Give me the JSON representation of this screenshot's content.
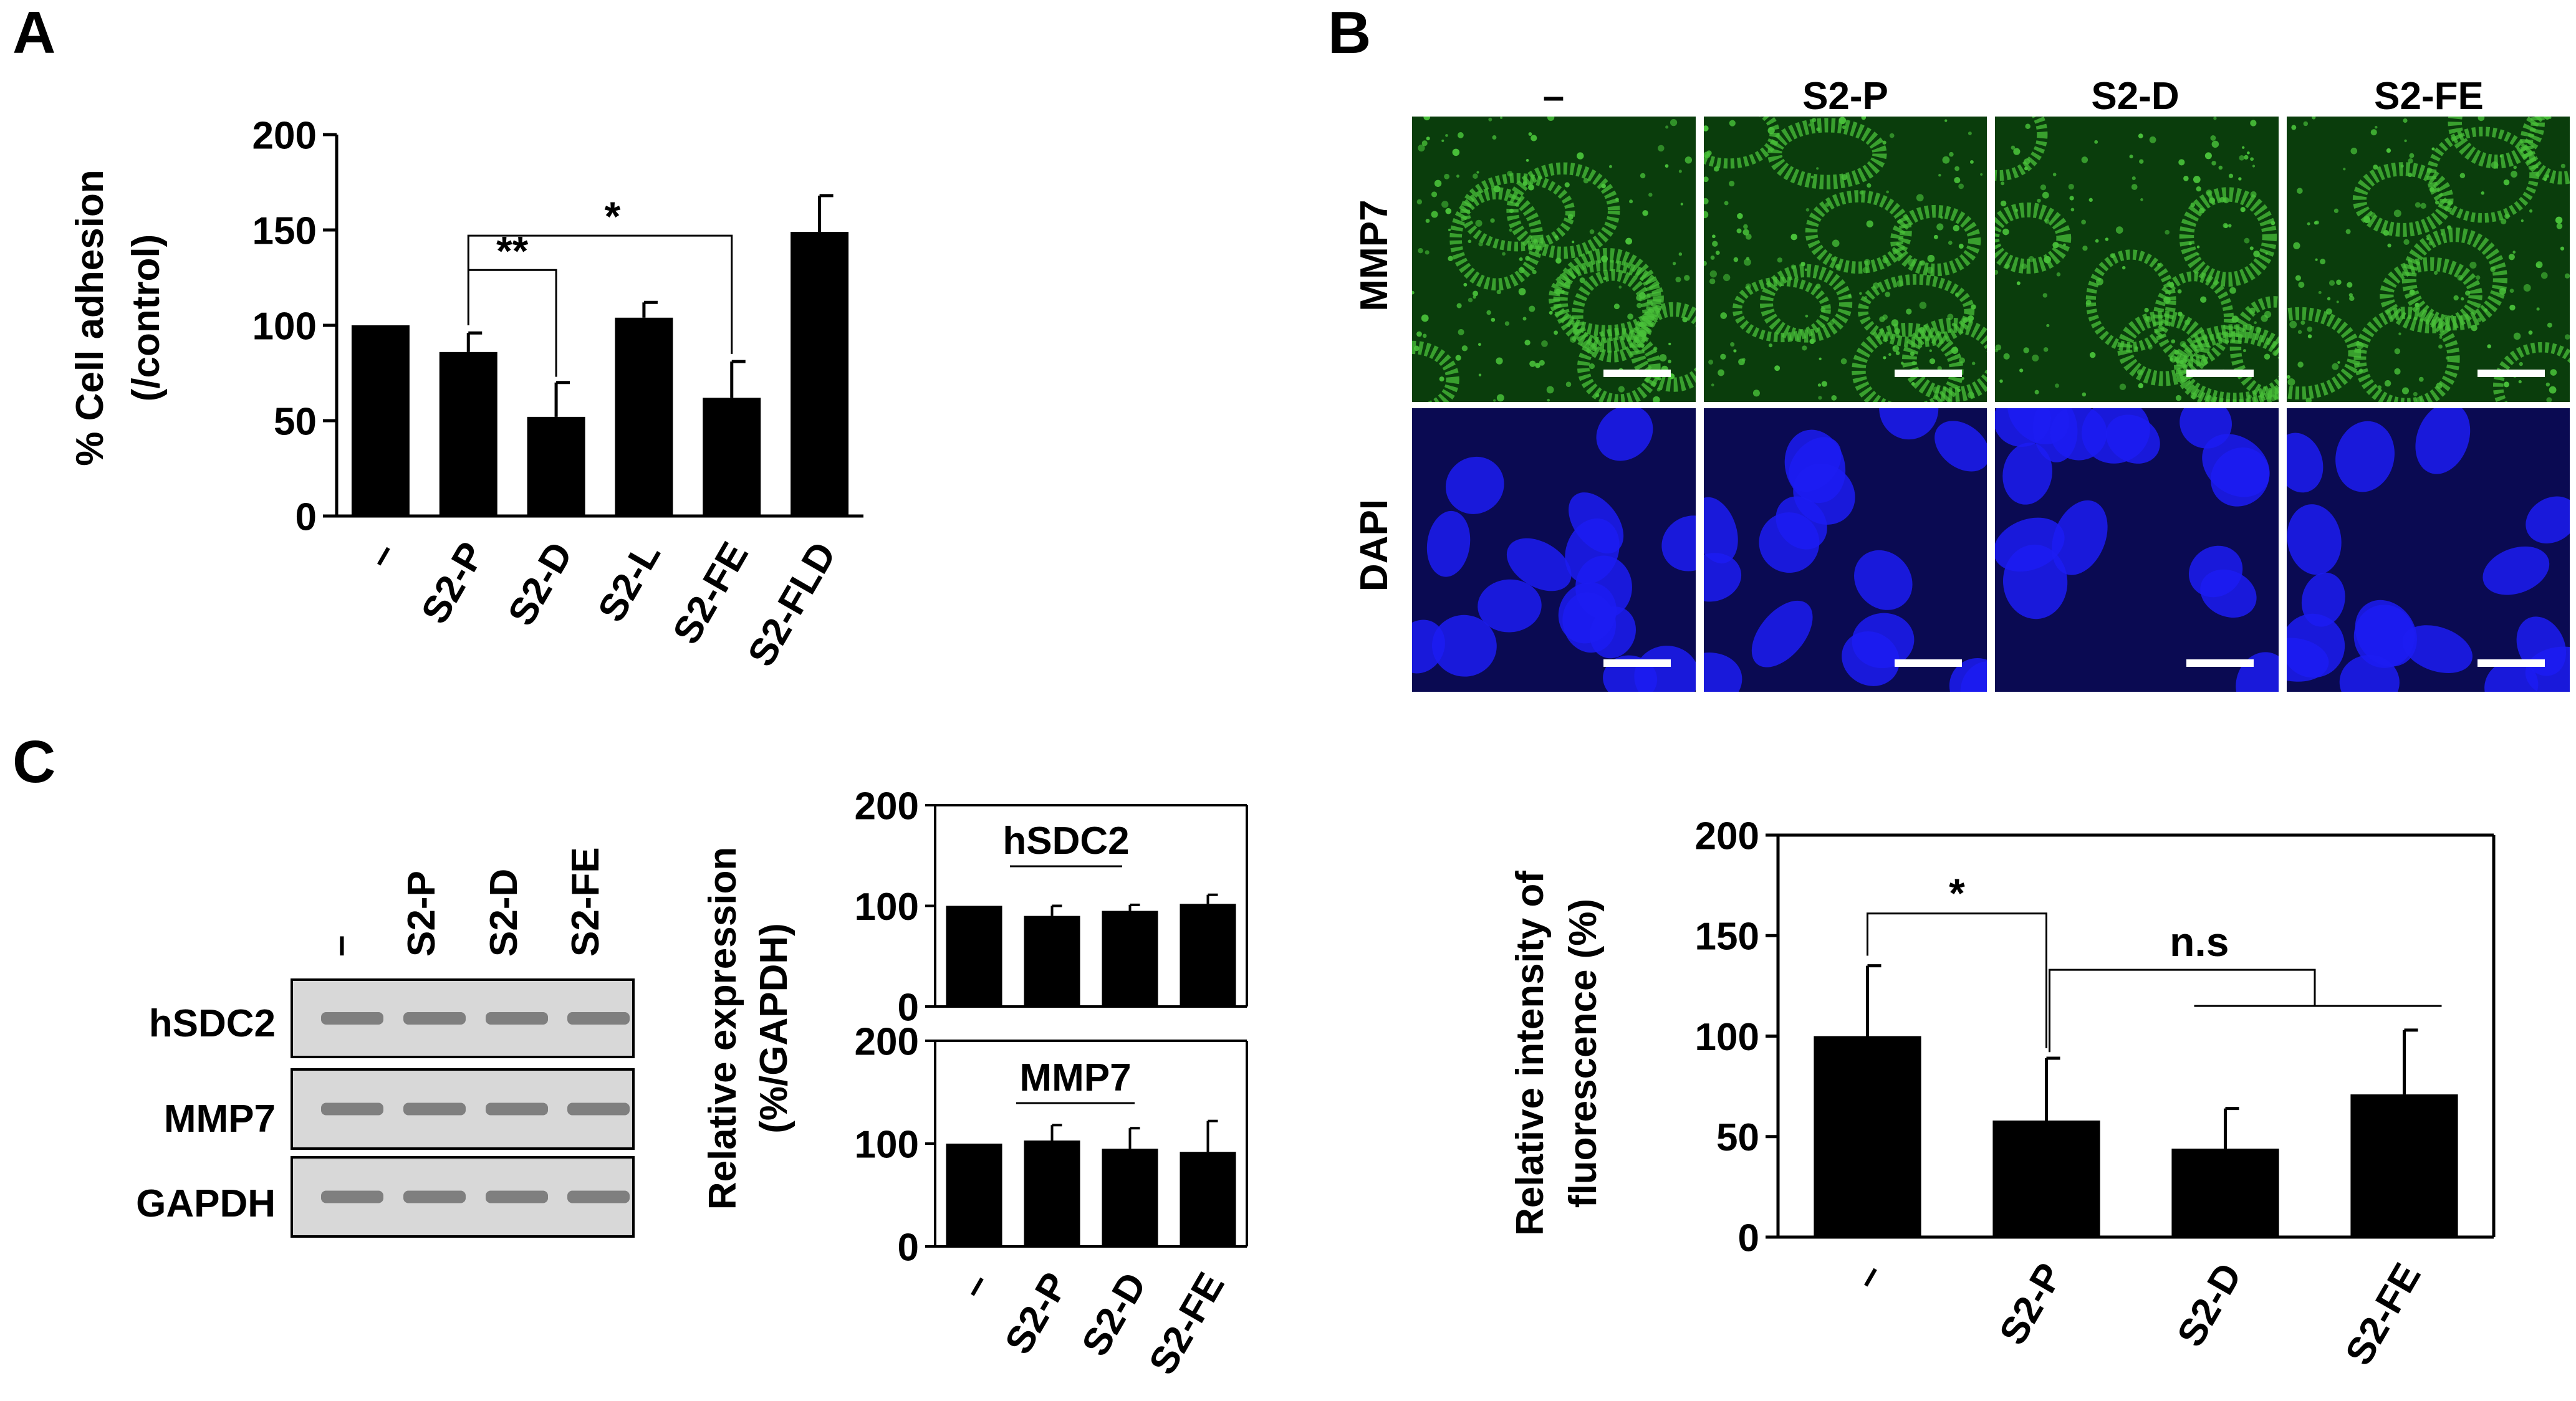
{
  "figure": {
    "panel_labels": [
      "A",
      "B",
      "C"
    ]
  },
  "panelA": {
    "chart_data": {
      "type": "bar",
      "categories": [
        "–",
        "S2-P",
        "S2-D",
        "S2-L",
        "S2-FE",
        "S2-FLD"
      ],
      "values": [
        100,
        86,
        52,
        104,
        62,
        149
      ],
      "errors": [
        0,
        10,
        18,
        8,
        19,
        19
      ],
      "ylabel_lines": [
        "% Cell adhesion",
        "(/control)"
      ],
      "ylim": [
        0,
        200
      ],
      "yticks": [
        0,
        50,
        100,
        150,
        200
      ],
      "significance": [
        {
          "from": 1,
          "to": 2,
          "label": "**"
        },
        {
          "from": 1,
          "to": 4,
          "label": "*"
        }
      ]
    }
  },
  "panelB": {
    "columns": [
      "–",
      "S2-P",
      "S2-D",
      "S2-FE"
    ],
    "rows": [
      "MMP7",
      "DAPI"
    ],
    "colors": {
      "mmp7_bg": "#0a3d0c",
      "mmp7_signal": "#49c23a",
      "dapi_bg": "#0a0a52",
      "dapi_nucleus": "#1c1cf2",
      "scalebar": "#ffffff"
    }
  },
  "panelC": {
    "gel": {
      "lanes": [
        "–",
        "S2-P",
        "S2-D",
        "S2-FE"
      ],
      "genes": [
        "hSDC2",
        "MMP7",
        "GAPDH"
      ]
    },
    "shared_ylabel_lines": [
      "Relative expression",
      "(%/GAPDH)"
    ],
    "chart_data": [
      {
        "type": "bar",
        "title": "hSDC2",
        "categories": [
          "–",
          "S2-P",
          "S2-D",
          "S2-FE"
        ],
        "values": [
          100,
          90,
          95,
          102
        ],
        "errors": [
          0,
          10,
          6,
          9
        ],
        "ylim": [
          0,
          200
        ],
        "yticks": [
          0,
          100,
          200
        ]
      },
      {
        "type": "bar",
        "title": "MMP7",
        "categories": [
          "–",
          "S2-P",
          "S2-D",
          "S2-FE"
        ],
        "values": [
          100,
          103,
          95,
          92
        ],
        "errors": [
          0,
          15,
          20,
          30
        ],
        "ylim": [
          0,
          200
        ],
        "yticks": [
          0,
          100,
          200
        ]
      }
    ]
  },
  "panelD": {
    "chart_data": {
      "type": "bar",
      "categories": [
        "–",
        "S2-P",
        "S2-D",
        "S2-FE"
      ],
      "values": [
        100,
        58,
        44,
        71
      ],
      "errors": [
        35,
        31,
        20,
        32
      ],
      "ylabel_lines": [
        "Relative intensity of",
        "fluorescence (%)"
      ],
      "ylim": [
        0,
        200
      ],
      "yticks": [
        0,
        50,
        100,
        150,
        200
      ],
      "significance": [
        {
          "label": "*"
        },
        {
          "label": "n.s"
        }
      ]
    }
  }
}
